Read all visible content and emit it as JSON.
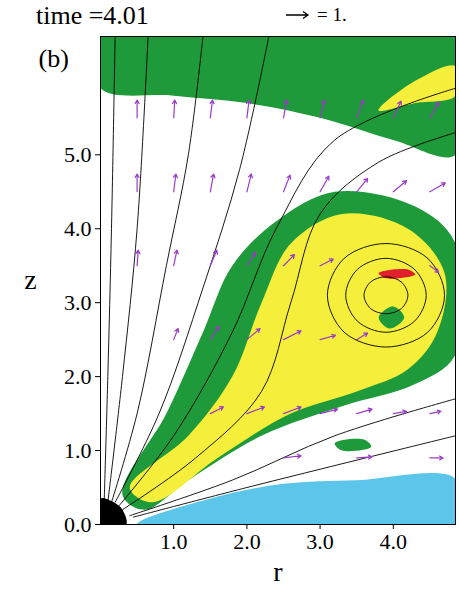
{
  "chart_data": {
    "type": "vector_field",
    "title": "time =4.01",
    "panel_label": "(b)",
    "x_label": "r",
    "y_label": "z",
    "xlim": [
      0,
      4.85
    ],
    "ylim": [
      0,
      6.6
    ],
    "xticks": [
      1,
      2,
      3,
      4
    ],
    "yticks": [
      0,
      1,
      2,
      3,
      4,
      5
    ],
    "vector_key": {
      "value": 1,
      "label": "= 1."
    },
    "regions": [
      {
        "color": "#1f9a3a",
        "points": [
          [
            0.3,
            0.4
          ],
          [
            0.9,
            1.5
          ],
          [
            1.4,
            2.6
          ],
          [
            1.8,
            3.5
          ],
          [
            2.4,
            4.1
          ],
          [
            3.2,
            4.5
          ],
          [
            4.3,
            4.3
          ],
          [
            4.85,
            3.8
          ],
          [
            4.85,
            2.3
          ],
          [
            4.3,
            1.9
          ],
          [
            3.3,
            1.6
          ],
          [
            2.2,
            1.2
          ],
          [
            1.2,
            0.6
          ],
          [
            0.6,
            0.2
          ]
        ]
      },
      {
        "color": "#f5ee3a",
        "points": [
          [
            0.4,
            0.5
          ],
          [
            1.2,
            1.2
          ],
          [
            1.8,
            2.0
          ],
          [
            2.2,
            3.0
          ],
          [
            2.6,
            3.8
          ],
          [
            3.3,
            4.2
          ],
          [
            4.2,
            4.0
          ],
          [
            4.7,
            3.4
          ],
          [
            4.6,
            2.6
          ],
          [
            4.2,
            2.1
          ],
          [
            3.5,
            1.8
          ],
          [
            2.6,
            1.5
          ],
          [
            1.6,
            0.9
          ],
          [
            0.7,
            0.3
          ]
        ]
      },
      {
        "color": "#5cc6ea",
        "points": [
          [
            0.5,
            0.0
          ],
          [
            1.5,
            0.35
          ],
          [
            2.5,
            0.55
          ],
          [
            3.5,
            0.6
          ],
          [
            4.85,
            0.62
          ],
          [
            4.85,
            0.0
          ]
        ]
      },
      {
        "color": "#1f9a3a",
        "points": [
          [
            0.0,
            6.6
          ],
          [
            0.0,
            5.9
          ],
          [
            1.0,
            5.8
          ],
          [
            2.0,
            5.7
          ],
          [
            3.0,
            5.5
          ],
          [
            4.0,
            5.2
          ],
          [
            4.85,
            5.0
          ],
          [
            4.85,
            6.6
          ]
        ]
      },
      {
        "color": "#f5ee3a",
        "points": [
          [
            3.8,
            5.6
          ],
          [
            4.3,
            5.7
          ],
          [
            4.85,
            5.8
          ],
          [
            4.85,
            6.2
          ],
          [
            4.3,
            6.0
          ]
        ]
      },
      {
        "color": "#1f9a3a",
        "points": [
          [
            3.2,
            1.1
          ],
          [
            3.6,
            1.15
          ],
          [
            3.7,
            1.05
          ],
          [
            3.3,
            1.0
          ]
        ]
      },
      {
        "color": "#1f9a3a",
        "points": [
          [
            3.8,
            2.8
          ],
          [
            4.0,
            2.95
          ],
          [
            4.15,
            2.8
          ],
          [
            3.95,
            2.65
          ]
        ]
      },
      {
        "color": "#e0202a",
        "points": [
          [
            3.8,
            3.4
          ],
          [
            4.2,
            3.45
          ],
          [
            4.3,
            3.38
          ],
          [
            3.9,
            3.33
          ]
        ]
      },
      {
        "color": "#000000",
        "points": [
          [
            0.0,
            0.0
          ],
          [
            0.35,
            0.0
          ],
          [
            0.3,
            0.2
          ],
          [
            0.18,
            0.3
          ],
          [
            0.0,
            0.35
          ]
        ]
      }
    ],
    "field_lines": {
      "color": "#000000",
      "lines": [
        [
          [
            0.05,
            0.3
          ],
          [
            0.1,
            2.0
          ],
          [
            0.15,
            4.0
          ],
          [
            0.2,
            6.6
          ]
        ],
        [
          [
            0.1,
            0.3
          ],
          [
            0.3,
            2.0
          ],
          [
            0.5,
            4.0
          ],
          [
            0.65,
            6.6
          ]
        ],
        [
          [
            0.15,
            0.3
          ],
          [
            0.5,
            1.5
          ],
          [
            0.9,
            3.5
          ],
          [
            1.2,
            5.0
          ],
          [
            1.4,
            6.6
          ]
        ],
        [
          [
            0.2,
            0.3
          ],
          [
            0.8,
            1.5
          ],
          [
            1.4,
            3.2
          ],
          [
            1.9,
            4.8
          ],
          [
            2.3,
            6.6
          ]
        ],
        [
          [
            0.25,
            0.25
          ],
          [
            1.0,
            1.2
          ],
          [
            1.8,
            2.6
          ],
          [
            2.4,
            4.0
          ],
          [
            3.2,
            5.2
          ],
          [
            4.85,
            5.9
          ]
        ],
        [
          [
            0.3,
            0.2
          ],
          [
            1.3,
            0.9
          ],
          [
            2.2,
            1.8
          ],
          [
            2.6,
            3.0
          ],
          [
            3.0,
            4.2
          ],
          [
            3.8,
            4.9
          ],
          [
            4.85,
            5.3
          ]
        ],
        [
          [
            0.4,
            0.12
          ],
          [
            1.8,
            0.6
          ],
          [
            3.2,
            1.2
          ],
          [
            4.85,
            1.7
          ]
        ],
        [
          [
            0.45,
            0.1
          ],
          [
            2.0,
            0.5
          ],
          [
            4.85,
            1.2
          ]
        ]
      ]
    },
    "flux_loops": {
      "color": "#000000",
      "loops": [
        [
          [
            4.2,
            3.1
          ],
          [
            4.11,
            3.28
          ],
          [
            3.9,
            3.35
          ],
          [
            3.69,
            3.28
          ],
          [
            3.6,
            3.1
          ],
          [
            3.69,
            2.92
          ],
          [
            3.9,
            2.85
          ],
          [
            4.11,
            2.92
          ]
        ],
        [
          [
            4.45,
            3.1
          ],
          [
            4.29,
            3.45
          ],
          [
            3.9,
            3.6
          ],
          [
            3.51,
            3.45
          ],
          [
            3.35,
            3.1
          ],
          [
            3.51,
            2.75
          ],
          [
            3.9,
            2.6
          ],
          [
            4.29,
            2.75
          ]
        ],
        [
          [
            4.7,
            3.1
          ],
          [
            4.47,
            3.6
          ],
          [
            3.9,
            3.8
          ],
          [
            3.33,
            3.6
          ],
          [
            3.1,
            3.1
          ],
          [
            3.33,
            2.6
          ],
          [
            3.9,
            2.4
          ],
          [
            4.47,
            2.6
          ]
        ]
      ]
    },
    "vectors": {
      "color": "#9a3cc8",
      "arrows": [
        [
          0.5,
          5.5,
          0,
          0.8
        ],
        [
          1,
          5.5,
          0.05,
          0.8
        ],
        [
          1.5,
          5.5,
          0.1,
          0.8
        ],
        [
          2,
          5.5,
          0.1,
          0.8
        ],
        [
          2.5,
          5.5,
          0.15,
          0.8
        ],
        [
          3,
          5.5,
          0.2,
          0.8
        ],
        [
          3.5,
          5.5,
          0.3,
          0.8
        ],
        [
          4,
          5.5,
          0.35,
          0.75
        ],
        [
          4.5,
          5.5,
          0.4,
          0.7
        ],
        [
          0.5,
          4.5,
          0,
          0.8
        ],
        [
          1,
          4.5,
          0.1,
          0.8
        ],
        [
          1.5,
          4.5,
          0.15,
          0.8
        ],
        [
          2,
          4.5,
          0.2,
          0.8
        ],
        [
          2.5,
          4.5,
          0.3,
          0.75
        ],
        [
          3,
          4.5,
          0.4,
          0.7
        ],
        [
          3.5,
          4.5,
          0.5,
          0.6
        ],
        [
          4,
          4.5,
          0.6,
          0.5
        ],
        [
          4.5,
          4.5,
          0.7,
          0.4
        ],
        [
          0.5,
          3.5,
          0.05,
          0.7
        ],
        [
          1,
          3.5,
          0.15,
          0.7
        ],
        [
          1.5,
          3.5,
          0.3,
          0.7
        ],
        [
          2,
          3.5,
          0.4,
          0.6
        ],
        [
          2.5,
          3.5,
          0.5,
          0.5
        ],
        [
          3,
          3.5,
          0.6,
          0.3
        ],
        [
          4.5,
          3.5,
          0.4,
          -0.3
        ],
        [
          1,
          2.5,
          0.2,
          0.5
        ],
        [
          1.5,
          2.5,
          0.4,
          0.6
        ],
        [
          2,
          2.5,
          0.6,
          0.5
        ],
        [
          2.5,
          2.5,
          0.8,
          0.4
        ],
        [
          3,
          2.5,
          0.7,
          0.2
        ],
        [
          3.5,
          2.5,
          0.5,
          0.3
        ],
        [
          1.5,
          1.5,
          0.6,
          0.3
        ],
        [
          2,
          1.5,
          0.8,
          0.3
        ],
        [
          2.5,
          1.5,
          0.8,
          0.3
        ],
        [
          3,
          1.5,
          0.8,
          0.2
        ],
        [
          3.5,
          1.5,
          0.7,
          0.2
        ],
        [
          4,
          1.5,
          0.6,
          0.1
        ],
        [
          4.5,
          1.5,
          0.5,
          0.1
        ],
        [
          2.5,
          0.9,
          0.8,
          0.1
        ],
        [
          3.5,
          0.9,
          0.7,
          0.05
        ],
        [
          4.5,
          0.9,
          0.6,
          0.0
        ]
      ]
    }
  }
}
